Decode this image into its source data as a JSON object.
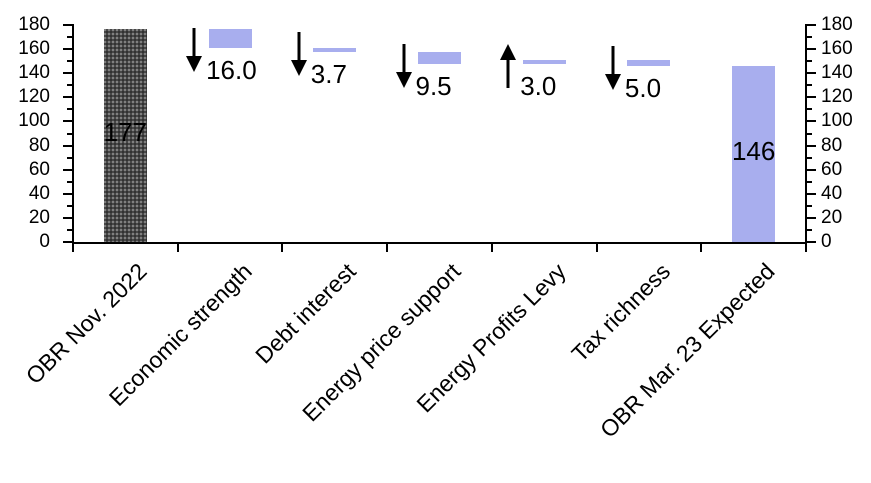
{
  "chart_data": {
    "type": "bar",
    "subtype": "waterfall",
    "title": "",
    "legend": null,
    "grid": false,
    "categories": [
      "OBR Nov. 2022",
      "Economic strength",
      "Debt interest",
      "Energy price support",
      "Energy Profits Levy",
      "Tax richness",
      "OBR Mar. 23 Expected"
    ],
    "columns": [
      {
        "category": "OBR Nov. 2022",
        "kind": "total",
        "start": 0,
        "end": 177,
        "fill": "pattern-dark",
        "bar_label": "177",
        "arrow": null,
        "delta_label": null
      },
      {
        "category": "Economic strength",
        "kind": "delta",
        "start": 177,
        "end": 161,
        "fill": "solid-lavender",
        "bar_label": null,
        "arrow": "down",
        "delta_label": "16.0"
      },
      {
        "category": "Debt interest",
        "kind": "delta",
        "start": 161,
        "end": 157.3,
        "fill": "solid-lavender",
        "bar_label": null,
        "arrow": "down",
        "delta_label": "3.7"
      },
      {
        "category": "Energy price support",
        "kind": "delta",
        "start": 157.3,
        "end": 147.8,
        "fill": "solid-lavender",
        "bar_label": null,
        "arrow": "down",
        "delta_label": "9.5"
      },
      {
        "category": "Energy Profits Levy",
        "kind": "delta",
        "start": 147.8,
        "end": 150.8,
        "fill": "solid-lavender",
        "bar_label": null,
        "arrow": "up",
        "delta_label": "3.0"
      },
      {
        "category": "Tax richness",
        "kind": "delta",
        "start": 150.8,
        "end": 145.8,
        "fill": "solid-lavender",
        "bar_label": null,
        "arrow": "down",
        "delta_label": "5.0"
      },
      {
        "category": "OBR Mar. 23 Expected",
        "kind": "total",
        "start": 0,
        "end": 146,
        "fill": "solid-lavender",
        "bar_label": "146",
        "arrow": null,
        "delta_label": null
      }
    ],
    "y_axis": {
      "min": 0,
      "max": 180,
      "major_step": 20,
      "minor_step": 10,
      "sides": [
        "left",
        "right"
      ],
      "major_tick_labels": [
        "0",
        "20",
        "40",
        "60",
        "80",
        "100",
        "120",
        "140",
        "160",
        "180"
      ]
    },
    "colors": {
      "total_start_bar": "#474747",
      "total_start_speckle": "#8b8b8b",
      "delta_bar": "#a8aeee",
      "axis_line": "#000000",
      "text": "#000000",
      "background": "#ffffff"
    }
  }
}
